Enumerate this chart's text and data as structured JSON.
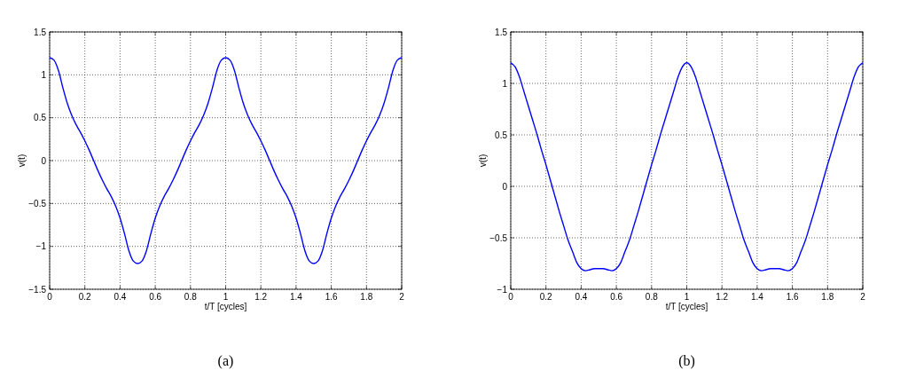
{
  "chart_data": [
    {
      "type": "line",
      "xlabel": "t/T [cycles]",
      "ylabel": "v(t)",
      "annotations": [
        "(a)"
      ],
      "grid": true,
      "xlim": [
        0,
        2
      ],
      "ylim": [
        -1.5,
        1.5
      ],
      "xticks": [
        0,
        0.2,
        0.4,
        0.6,
        0.8,
        1,
        1.2,
        1.4,
        1.6,
        1.8,
        2
      ],
      "yticks": [
        -1.5,
        -1,
        -0.5,
        0,
        0.5,
        1,
        1.5
      ],
      "x": [
        0,
        0.025,
        0.05,
        0.075,
        0.1,
        0.125,
        0.15,
        0.175,
        0.2,
        0.225,
        0.25,
        0.275,
        0.3,
        0.325,
        0.35,
        0.375,
        0.4,
        0.425,
        0.45,
        0.475,
        0.5,
        0.525,
        0.55,
        0.575,
        0.6,
        0.625,
        0.65,
        0.675,
        0.7,
        0.725,
        0.75,
        0.775,
        0.8,
        0.825,
        0.85,
        0.875,
        0.9,
        0.925,
        0.95,
        0.975,
        1,
        1.025,
        1.05,
        1.075,
        1.1,
        1.125,
        1.15,
        1.175,
        1.2,
        1.225,
        1.25,
        1.275,
        1.3,
        1.325,
        1.35,
        1.375,
        1.4,
        1.425,
        1.45,
        1.475,
        1.5,
        1.525,
        1.55,
        1.575,
        1.6,
        1.625,
        1.65,
        1.675,
        1.7,
        1.725,
        1.75,
        1.775,
        1.8,
        1.825,
        1.85,
        1.875,
        1.9,
        1.925,
        1.95,
        1.975,
        2
      ],
      "series": [
        {
          "color": "#0000ff",
          "values": [
            1.2,
            1.17,
            1.05,
            0.85,
            0.67,
            0.53,
            0.42,
            0.33,
            0.23,
            0.12,
            0,
            -0.12,
            -0.23,
            -0.33,
            -0.42,
            -0.53,
            -0.67,
            -0.85,
            -1.05,
            -1.17,
            -1.2,
            -1.17,
            -1.05,
            -0.85,
            -0.67,
            -0.53,
            -0.42,
            -0.33,
            -0.23,
            -0.12,
            0,
            0.12,
            0.23,
            0.33,
            0.42,
            0.53,
            0.67,
            0.85,
            1.05,
            1.17,
            1.2,
            1.17,
            1.05,
            0.85,
            0.67,
            0.53,
            0.42,
            0.33,
            0.23,
            0.12,
            0,
            -0.12,
            -0.23,
            -0.33,
            -0.42,
            -0.53,
            -0.67,
            -0.85,
            -1.05,
            -1.17,
            -1.2,
            -1.17,
            -1.05,
            -0.85,
            -0.67,
            -0.53,
            -0.42,
            -0.33,
            -0.23,
            -0.12,
            0,
            0.12,
            0.23,
            0.33,
            0.42,
            0.53,
            0.67,
            0.85,
            1.05,
            1.17,
            1.2
          ]
        }
      ]
    },
    {
      "type": "line",
      "xlabel": "t/T [cycles]",
      "ylabel": "v(t)",
      "annotations": [
        "(b)"
      ],
      "grid": true,
      "xlim": [
        0,
        2
      ],
      "ylim": [
        -1,
        1.5
      ],
      "xticks": [
        0,
        0.2,
        0.4,
        0.6,
        0.8,
        1,
        1.2,
        1.4,
        1.6,
        1.8,
        2
      ],
      "yticks": [
        -1,
        -0.5,
        0,
        0.5,
        1,
        1.5
      ],
      "x": [
        0,
        0.025,
        0.05,
        0.075,
        0.1,
        0.125,
        0.15,
        0.175,
        0.2,
        0.225,
        0.25,
        0.275,
        0.3,
        0.325,
        0.35,
        0.375,
        0.4,
        0.425,
        0.45,
        0.475,
        0.5,
        0.525,
        0.55,
        0.575,
        0.6,
        0.625,
        0.65,
        0.675,
        0.7,
        0.725,
        0.75,
        0.775,
        0.8,
        0.825,
        0.85,
        0.875,
        0.9,
        0.925,
        0.95,
        0.975,
        1,
        1.025,
        1.05,
        1.075,
        1.1,
        1.125,
        1.15,
        1.175,
        1.2,
        1.225,
        1.25,
        1.275,
        1.3,
        1.325,
        1.35,
        1.375,
        1.4,
        1.425,
        1.45,
        1.475,
        1.5,
        1.525,
        1.55,
        1.575,
        1.6,
        1.625,
        1.65,
        1.675,
        1.7,
        1.725,
        1.75,
        1.775,
        1.8,
        1.825,
        1.85,
        1.875,
        1.9,
        1.925,
        1.95,
        1.975,
        2
      ],
      "series": [
        {
          "color": "#0000ff",
          "values": [
            1.2,
            1.16,
            1.06,
            0.92,
            0.78,
            0.64,
            0.5,
            0.35,
            0.21,
            0.06,
            -0.09,
            -0.24,
            -0.38,
            -0.52,
            -0.63,
            -0.74,
            -0.8,
            -0.82,
            -0.81,
            -0.8,
            -0.8,
            -0.8,
            -0.81,
            -0.82,
            -0.8,
            -0.74,
            -0.63,
            -0.52,
            -0.38,
            -0.24,
            -0.09,
            0.06,
            0.21,
            0.35,
            0.5,
            0.64,
            0.78,
            0.92,
            1.06,
            1.16,
            1.2,
            1.16,
            1.06,
            0.92,
            0.78,
            0.64,
            0.5,
            0.35,
            0.21,
            0.06,
            -0.09,
            -0.24,
            -0.38,
            -0.52,
            -0.63,
            -0.74,
            -0.8,
            -0.82,
            -0.81,
            -0.8,
            -0.8,
            -0.8,
            -0.81,
            -0.82,
            -0.8,
            -0.74,
            -0.63,
            -0.52,
            -0.38,
            -0.24,
            -0.09,
            0.06,
            0.21,
            0.35,
            0.5,
            0.64,
            0.78,
            0.92,
            1.06,
            1.16,
            1.2
          ]
        }
      ]
    }
  ]
}
